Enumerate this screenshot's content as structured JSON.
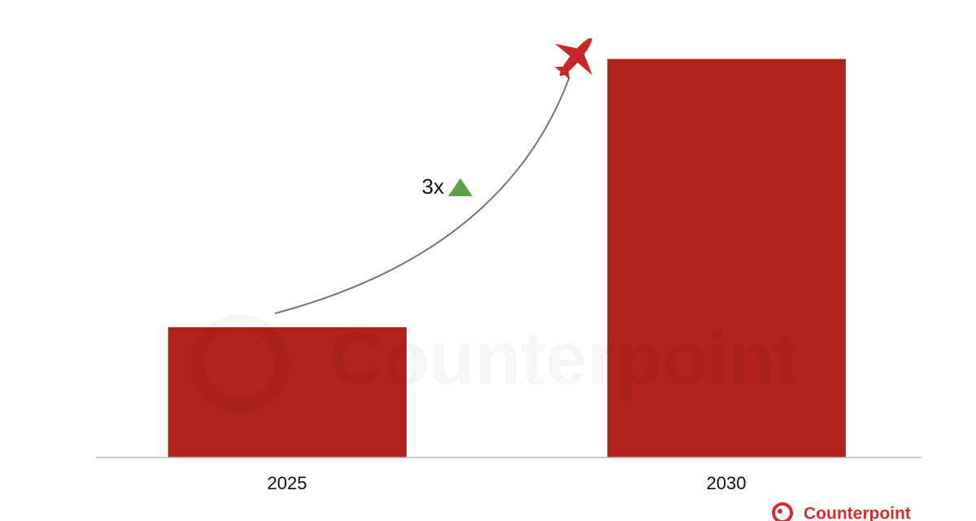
{
  "chart_data": {
    "type": "bar",
    "categories": [
      "2025",
      "2030"
    ],
    "values": [
      1,
      3.06
    ],
    "color": "#b0221a",
    "ylim": [
      0,
      3.2
    ],
    "annotation": "3x",
    "watermark": "Counterpoint",
    "logo": "Counterpoint"
  }
}
